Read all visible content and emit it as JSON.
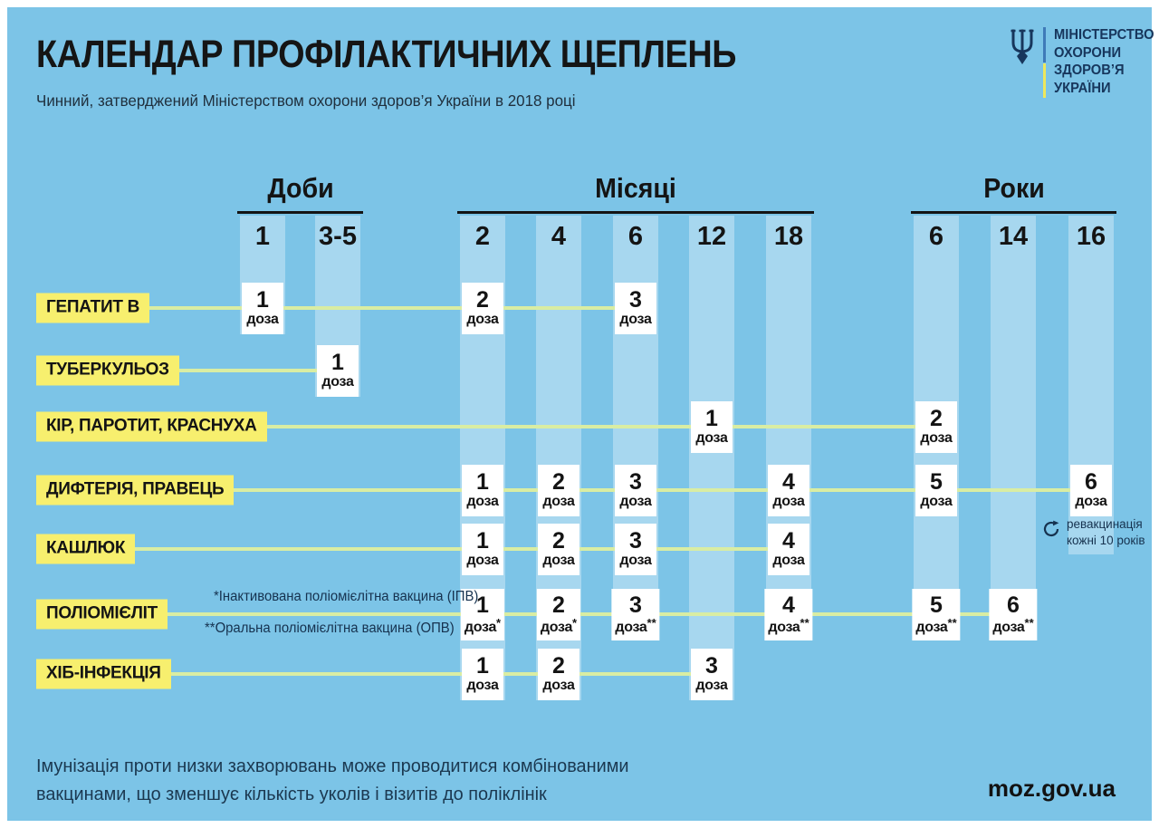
{
  "page": {
    "title": "КАЛЕНДАР ПРОФІЛАКТИЧНИХ ЩЕПЛЕНЬ",
    "subtitle": "Чинний, затверджений Міністерством охорони здоров’я України в 2018 році"
  },
  "logo": {
    "icon": "tryzub-trident-icon",
    "lines": [
      "МІНІСТЕРСТВО",
      "ОХОРОНИ",
      "ЗДОРОВ’Я",
      "УКРАЇНИ"
    ]
  },
  "chart_data": {
    "type": "table",
    "title": "КАЛЕНДАР ПРОФІЛАКТИЧНИХ ЩЕПЛЕНЬ",
    "groups": [
      {
        "label": "Доби",
        "columns": [
          {
            "id": "d1",
            "label": "1"
          },
          {
            "id": "d3-5",
            "label": "3-5"
          }
        ]
      },
      {
        "label": "Місяці",
        "columns": [
          {
            "id": "m2",
            "label": "2"
          },
          {
            "id": "m4",
            "label": "4"
          },
          {
            "id": "m6",
            "label": "6"
          },
          {
            "id": "m12",
            "label": "12"
          },
          {
            "id": "m18",
            "label": "18"
          }
        ]
      },
      {
        "label": "Роки",
        "columns": [
          {
            "id": "y6",
            "label": "6"
          },
          {
            "id": "y14",
            "label": "14"
          },
          {
            "id": "y16",
            "label": "16"
          }
        ]
      }
    ],
    "rows": [
      {
        "vaccine": "ГЕПАТИТ В",
        "doses": [
          {
            "col": "d1",
            "num": "1",
            "unit": "доза"
          },
          {
            "col": "m2",
            "num": "2",
            "unit": "доза"
          },
          {
            "col": "m6",
            "num": "3",
            "unit": "доза"
          }
        ]
      },
      {
        "vaccine": "ТУБЕРКУЛЬОЗ",
        "doses": [
          {
            "col": "d3-5",
            "num": "1",
            "unit": "доза"
          }
        ]
      },
      {
        "vaccine": "КІР, ПАРОТИТ, КРАСНУХА",
        "doses": [
          {
            "col": "m12",
            "num": "1",
            "unit": "доза"
          },
          {
            "col": "y6",
            "num": "2",
            "unit": "доза"
          }
        ]
      },
      {
        "vaccine": "ДИФТЕРІЯ, ПРАВЕЦЬ",
        "doses": [
          {
            "col": "m2",
            "num": "1",
            "unit": "доза"
          },
          {
            "col": "m4",
            "num": "2",
            "unit": "доза"
          },
          {
            "col": "m6",
            "num": "3",
            "unit": "доза"
          },
          {
            "col": "m18",
            "num": "4",
            "unit": "доза"
          },
          {
            "col": "y6",
            "num": "5",
            "unit": "доза"
          },
          {
            "col": "y16",
            "num": "6",
            "unit": "доза"
          }
        ]
      },
      {
        "vaccine": "КАШЛЮК",
        "doses": [
          {
            "col": "m2",
            "num": "1",
            "unit": "доза"
          },
          {
            "col": "m4",
            "num": "2",
            "unit": "доза"
          },
          {
            "col": "m6",
            "num": "3",
            "unit": "доза"
          },
          {
            "col": "m18",
            "num": "4",
            "unit": "доза"
          }
        ]
      },
      {
        "vaccine": "ПОЛІОМІЄЛІТ",
        "doses": [
          {
            "col": "m2",
            "num": "1",
            "unit": "доза*"
          },
          {
            "col": "m4",
            "num": "2",
            "unit": "доза*"
          },
          {
            "col": "m6",
            "num": "3",
            "unit": "доза**"
          },
          {
            "col": "m18",
            "num": "4",
            "unit": "доза**"
          },
          {
            "col": "y6",
            "num": "5",
            "unit": "доза**"
          },
          {
            "col": "y14",
            "num": "6",
            "unit": "доза**"
          }
        ]
      },
      {
        "vaccine": "ХІБ-ІНФЕКЦІЯ",
        "doses": [
          {
            "col": "m2",
            "num": "1",
            "unit": "доза"
          },
          {
            "col": "m4",
            "num": "2",
            "unit": "доза"
          },
          {
            "col": "m12",
            "num": "3",
            "unit": "доза"
          }
        ]
      }
    ]
  },
  "footnotes": {
    "items": [
      "*Інактивована поліомієлітна вакцина (ІПВ)",
      "**Оральна поліомієлітна вакцина (ОПВ)"
    ]
  },
  "revaccination_note": {
    "col": "y16",
    "icon": "refresh-cycle-icon",
    "line1": "ревакцинація",
    "line2": "кожні 10 років"
  },
  "footer": {
    "line1": "Імунізація проти низки захворювань може проводитися комбінованими",
    "line2": "вакцинами, що зменшує кількість уколів і візитів до поліклінік",
    "website": "moz.gov.ua"
  },
  "colors": {
    "background": "#7cc4e7",
    "column_stripe": "#a7d7ef",
    "label_highlight": "#f7ef6e",
    "connector_line": "#d9eda3",
    "navy_text": "#17365c",
    "black_text": "#141414",
    "flag_blue": "#3f7ab8",
    "flag_yellow": "#eee75c"
  }
}
